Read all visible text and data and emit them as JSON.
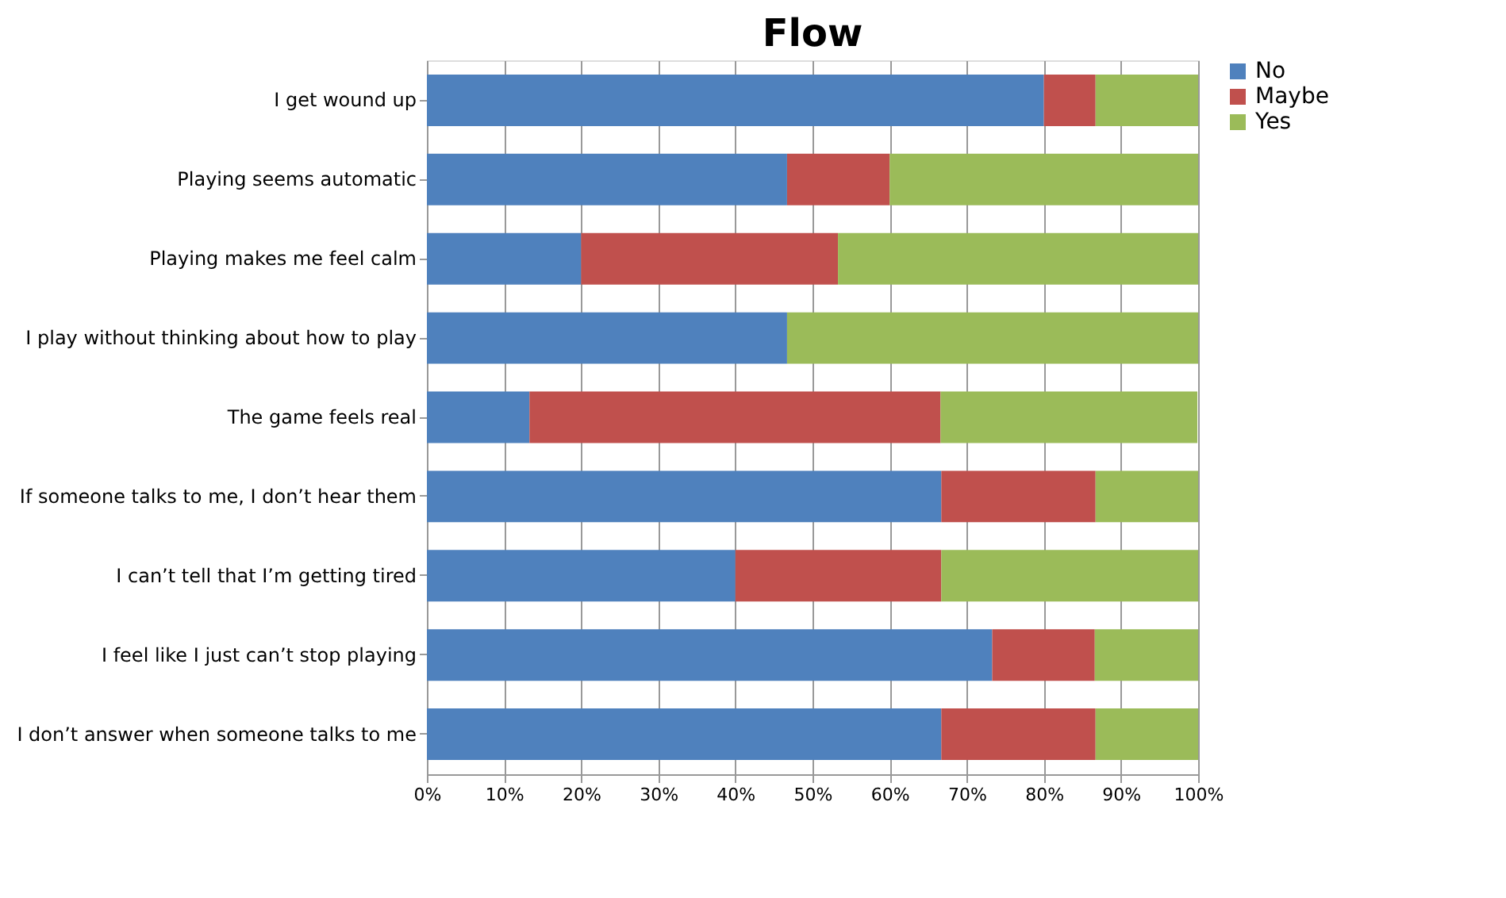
{
  "chart_data": {
    "type": "bar",
    "orientation": "horizontal",
    "stacked": true,
    "title": "Flow",
    "categories": [
      "I get wound up",
      "Playing seems automatic",
      "Playing makes me feel calm",
      "I play without thinking about how to play",
      "The game feels real",
      "If someone talks to me, I don’t hear them",
      "I can’t tell that I’m getting tired",
      "I feel like I just can’t stop playing",
      "I don’t answer when someone talks to me"
    ],
    "series": [
      {
        "name": "No",
        "color": "#4f81bd",
        "values": [
          80,
          46.7,
          20,
          46.7,
          13.3,
          66.7,
          40,
          73.3,
          66.7
        ]
      },
      {
        "name": "Maybe",
        "color": "#c0504d",
        "values": [
          6.7,
          13.3,
          33.3,
          0,
          53.3,
          20,
          26.7,
          13.3,
          20
        ]
      },
      {
        "name": "Yes",
        "color": "#9bbb59",
        "values": [
          13.3,
          40,
          46.7,
          53.3,
          33.3,
          13.3,
          33.3,
          13.4,
          13.3
        ]
      }
    ],
    "xlim": [
      0,
      100
    ],
    "xticks": [
      {
        "value": 0,
        "label": "0%"
      },
      {
        "value": 10,
        "label": "10%"
      },
      {
        "value": 20,
        "label": "20%"
      },
      {
        "value": 30,
        "label": "30%"
      },
      {
        "value": 40,
        "label": "40%"
      },
      {
        "value": 50,
        "label": "50%"
      },
      {
        "value": 60,
        "label": "60%"
      },
      {
        "value": 70,
        "label": "70%"
      },
      {
        "value": 80,
        "label": "80%"
      },
      {
        "value": 90,
        "label": "90%"
      },
      {
        "value": 100,
        "label": "100%"
      }
    ],
    "grid": "x",
    "legend": "right"
  }
}
